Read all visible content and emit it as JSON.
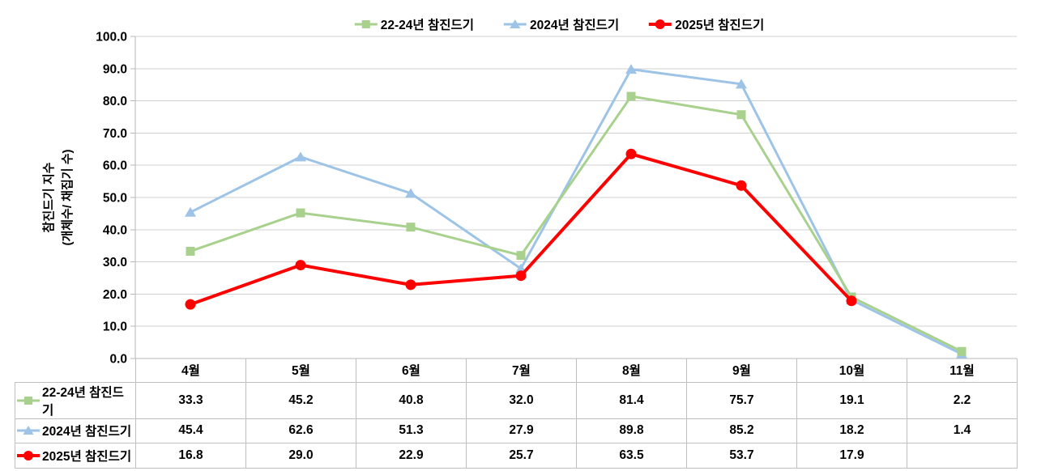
{
  "legend": {
    "items": [
      {
        "label": "22-24년 참진드기",
        "marker": "square"
      },
      {
        "label": "2024년 참진드기",
        "marker": "triangle"
      },
      {
        "label": "2025년 참진드기",
        "marker": "circle"
      }
    ]
  },
  "y_axis": {
    "title_line1": "참진드기 지수",
    "title_line2": "(개체수/ 채집기 수)"
  },
  "chart_data": {
    "type": "line",
    "title": "",
    "xlabel": "",
    "ylabel": "참진드기 지수 (개체수/ 채집기 수)",
    "categories": [
      "4월",
      "5월",
      "6월",
      "7월",
      "8월",
      "9월",
      "10월",
      "11월"
    ],
    "series": [
      {
        "name": "22-24년 참진드기",
        "color": "#A9D18E",
        "marker": "square",
        "line_width": 3,
        "values": [
          33.3,
          45.2,
          40.8,
          32.0,
          81.4,
          75.7,
          19.1,
          2.2
        ]
      },
      {
        "name": "2024년 참진드기",
        "color": "#9DC3E6",
        "marker": "triangle",
        "line_width": 3,
        "values": [
          45.4,
          62.6,
          51.3,
          27.9,
          89.8,
          85.2,
          18.2,
          1.4
        ]
      },
      {
        "name": "2025년 참진드기",
        "color": "#FF0000",
        "marker": "circle",
        "line_width": 4,
        "values": [
          16.8,
          29.0,
          22.9,
          25.7,
          63.5,
          53.7,
          17.9,
          null
        ]
      }
    ],
    "draw_order": [
      1,
      0,
      2
    ],
    "ylim": [
      0,
      100
    ],
    "ytick_step": 10,
    "ytick_labels": [
      "0.0",
      "10.0",
      "20.0",
      "30.0",
      "40.0",
      "50.0",
      "60.0",
      "70.0",
      "80.0",
      "90.0",
      "100.0"
    ],
    "grid": "horizontal",
    "legend_position": "top"
  },
  "table": {
    "corner": "",
    "column_headers": [
      "4월",
      "5월",
      "6월",
      "7월",
      "8월",
      "9월",
      "10월",
      "11월"
    ],
    "rows": [
      {
        "header": "22-24년 참진드기",
        "marker": "square",
        "color": "#A9D18E",
        "cells": [
          "33.3",
          "45.2",
          "40.8",
          "32.0",
          "81.4",
          "75.7",
          "19.1",
          "2.2"
        ]
      },
      {
        "header": "2024년 참진드기",
        "marker": "triangle",
        "color": "#9DC3E6",
        "cells": [
          "45.4",
          "62.6",
          "51.3",
          "27.9",
          "89.8",
          "85.2",
          "18.2",
          "1.4"
        ]
      },
      {
        "header": "2025년 참진드기",
        "marker": "circle",
        "color": "#FF0000",
        "cells": [
          "16.8",
          "29.0",
          "22.9",
          "25.7",
          "63.5",
          "53.7",
          "17.9",
          ""
        ]
      }
    ]
  },
  "colors": {
    "grid": "#D0D0D0",
    "axis": "#B7B7B7",
    "table_border": "#BFBFBF",
    "text": "#000000",
    "background": "#FFFFFF"
  }
}
